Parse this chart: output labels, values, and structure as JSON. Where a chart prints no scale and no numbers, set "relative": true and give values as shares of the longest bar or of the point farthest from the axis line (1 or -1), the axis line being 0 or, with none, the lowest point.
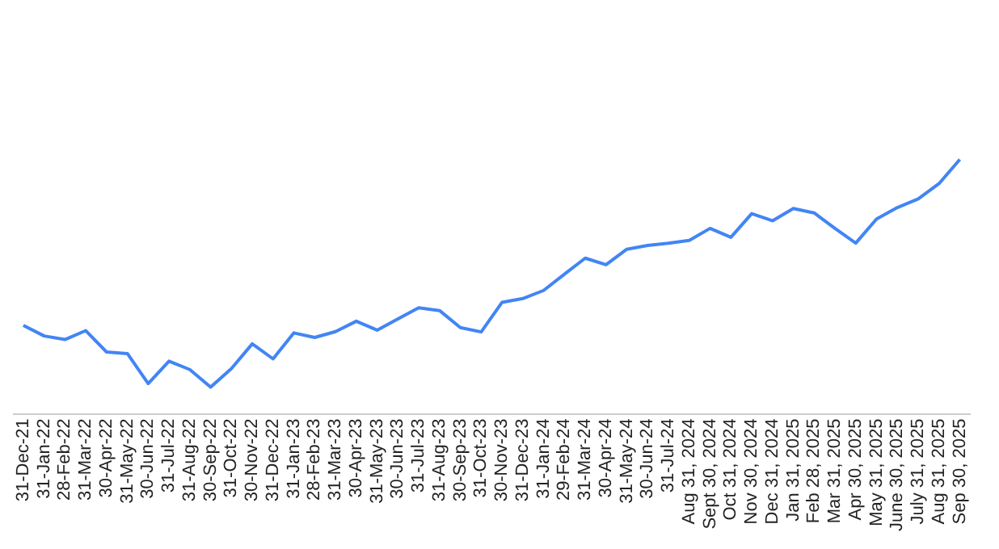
{
  "chart_data": {
    "type": "line",
    "relative": true,
    "legend": false,
    "marker": "none",
    "line_style": "solid",
    "categories": [
      "31-Dec-21",
      "31-Jan-22",
      "28-Feb-22",
      "31-Mar-22",
      "30-Apr-22",
      "31-May-22",
      "30-Jun-22",
      "31-Jul-22",
      "31-Aug-22",
      "30-Sep-22",
      "31-Oct-22",
      "30-Nov-22",
      "31-Dec-22",
      "31-Jan-23",
      "28-Feb-23",
      "31-Mar-23",
      "30-Apr-23",
      "31-May-23",
      "30-Jun-23",
      "31-Jul-23",
      "31-Aug-23",
      "30-Sep-23",
      "31-Oct-23",
      "30-Nov-23",
      "31-Dec-23",
      "31-Jan-24",
      "29-Feb-24",
      "31-Mar-24",
      "30-Apr-24",
      "31-May-24",
      "30-Jun-24",
      "31-Jul-24",
      "Aug 31, 2024",
      "Sept 30, 2024",
      "Oct 31, 2024",
      "Nov 30, 2024",
      "Dec 31, 2024",
      "Jan 31, 2025",
      "Feb 28, 2025",
      "Mar 31, 2025",
      "Apr 30, 2025",
      "May 31, 2025",
      "June 30, 2025",
      "July 31, 2025",
      "Aug 31, 2025",
      "Sep 30, 2025"
    ],
    "series": [
      {
        "color": "#4285f4",
        "values": [
          0.348,
          0.306,
          0.292,
          0.327,
          0.243,
          0.237,
          0.119,
          0.207,
          0.174,
          0.105,
          0.178,
          0.275,
          0.216,
          0.318,
          0.3,
          0.323,
          0.364,
          0.329,
          0.373,
          0.417,
          0.406,
          0.339,
          0.322,
          0.438,
          0.453,
          0.485,
          0.549,
          0.612,
          0.586,
          0.647,
          0.662,
          0.671,
          0.682,
          0.729,
          0.694,
          0.787,
          0.759,
          0.807,
          0.79,
          0.729,
          0.671,
          0.766,
          0.811,
          0.845,
          0.905,
          1
        ]
      }
    ]
  }
}
